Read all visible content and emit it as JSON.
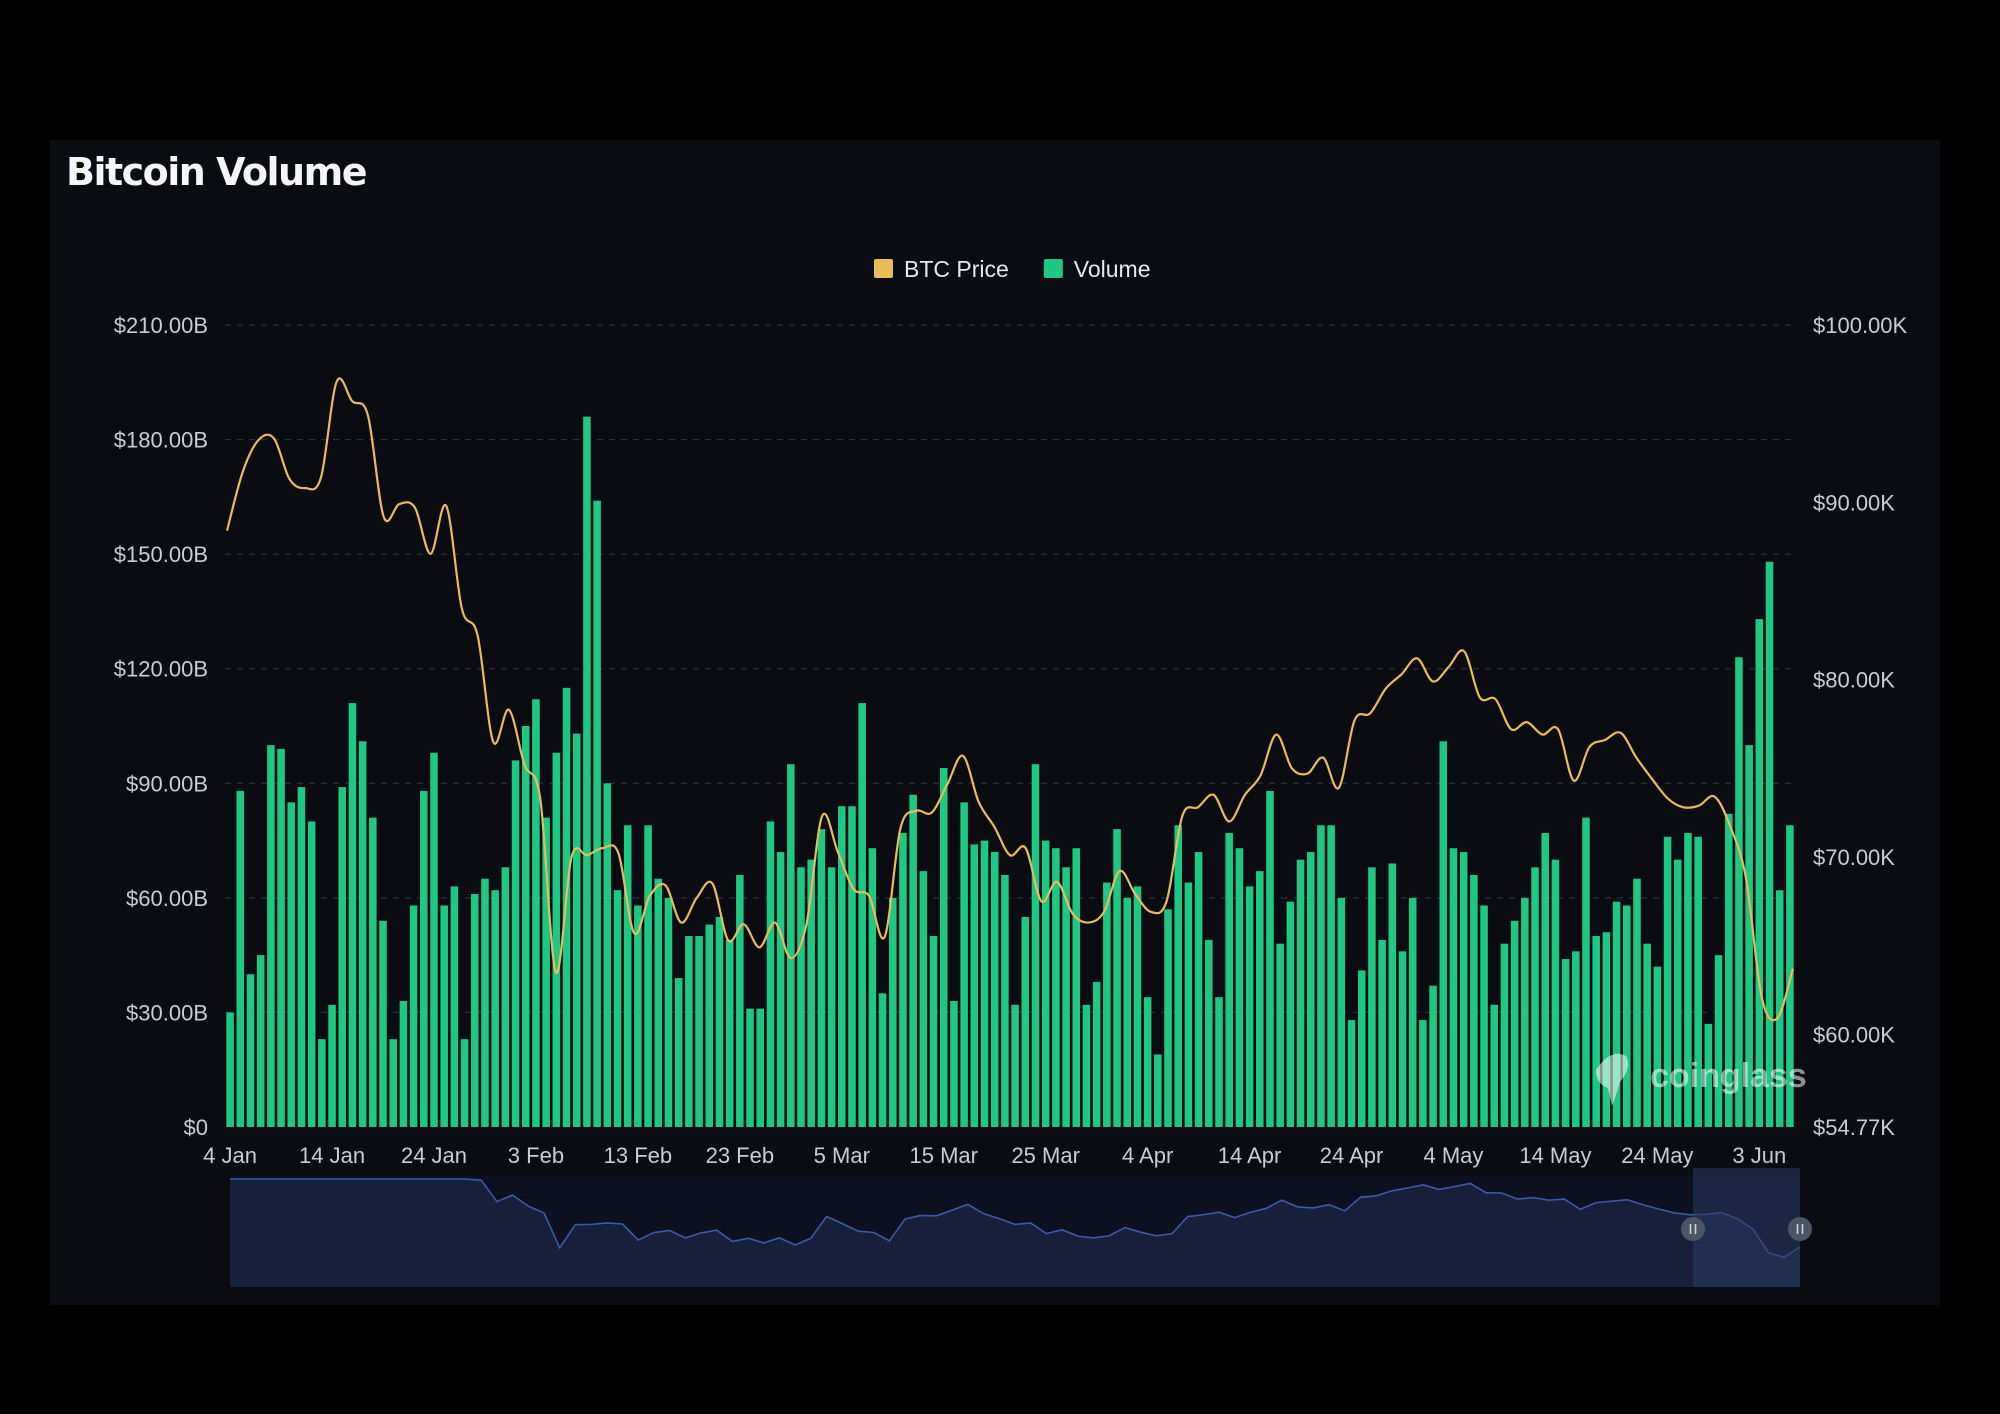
{
  "title": "Bitcoin Volume",
  "watermark": "coinglass",
  "colors": {
    "background": "#000000",
    "panel": "#0a0c12",
    "volume": "#1ec882",
    "price": "#e8bc5a",
    "grid": "#2a2f3a",
    "axis_text": "#c8ccd4",
    "navigator": "#3d5aa8"
  },
  "chart_data": {
    "type": "bar",
    "title": "Bitcoin Volume",
    "legend": [
      {
        "name": "BTC Price",
        "color": "#e8bc5a"
      },
      {
        "name": "Volume",
        "color": "#1ec882"
      }
    ],
    "legend_position": "top-center",
    "grid": true,
    "x_start": "4 Jan",
    "x_ticks": [
      "4 Jan",
      "14 Jan",
      "24 Jan",
      "3 Feb",
      "13 Feb",
      "23 Feb",
      "5 Mar",
      "15 Mar",
      "25 Mar",
      "4 Apr",
      "14 Apr",
      "24 Apr",
      "4 May",
      "14 May",
      "24 May",
      "3 Jun"
    ],
    "y_left": {
      "ticks": [
        "$0",
        "$30.00B",
        "$60.00B",
        "$90.00B",
        "$120.00B",
        "$150.00B",
        "$180.00B",
        "$210.00B"
      ],
      "range": [
        0,
        210
      ],
      "unit": "billion USD"
    },
    "y_right": {
      "ticks": [
        "$54.77K",
        "$60.00K",
        "$70.00K",
        "$80.00K",
        "$90.00K",
        "$100.00K"
      ],
      "range": [
        54.77,
        100
      ],
      "unit": "thousand USD"
    },
    "series": [
      {
        "name": "Volume",
        "type": "bar",
        "values": [
          30,
          88,
          40,
          45,
          100,
          99,
          85,
          89,
          80,
          23,
          32,
          89,
          111,
          101,
          81,
          54,
          23,
          33,
          58,
          88,
          98,
          58,
          63,
          23,
          61,
          65,
          62,
          68,
          96,
          105,
          112,
          81,
          98,
          115,
          103,
          186,
          164,
          90,
          62,
          79,
          58,
          79,
          65,
          60,
          39,
          50,
          50,
          53,
          55,
          49,
          66,
          31,
          31,
          80,
          72,
          95,
          68,
          70,
          78,
          68,
          84,
          84,
          111,
          73,
          35,
          60,
          77,
          87,
          67,
          50,
          94,
          33,
          85,
          74,
          75,
          72,
          66,
          32,
          55,
          95,
          75,
          73,
          68,
          73,
          32,
          38,
          64,
          78,
          60,
          63,
          34,
          19,
          57,
          79,
          64,
          72,
          49,
          34,
          77,
          73,
          63,
          67,
          88,
          48,
          59,
          70,
          72,
          79,
          79,
          60,
          28,
          41,
          68,
          49,
          69,
          46,
          60,
          28,
          37,
          101,
          73,
          72,
          66,
          58,
          32,
          48,
          54,
          60,
          68,
          77,
          70,
          44,
          46,
          81,
          50,
          51,
          59,
          58,
          65,
          48,
          42,
          76,
          70,
          77,
          76,
          27,
          45,
          82,
          123,
          100,
          133,
          148,
          62,
          79
        ]
      },
      {
        "name": "BTC Price",
        "type": "line",
        "values": [
          88.4,
          91.7,
          93.5,
          93.6,
          91.3,
          90.8,
          91.4,
          96.8,
          95.7,
          94.9,
          89.2,
          89.9,
          89.7,
          87.1,
          89.8,
          84.0,
          82.5,
          76.5,
          78.3,
          75.2,
          73.3,
          63.5,
          70.0,
          70.1,
          70.5,
          70.2,
          65.7,
          67.8,
          68.4,
          66.3,
          67.7,
          68.5,
          65.3,
          66.2,
          64.9,
          66.3,
          64.3,
          66.2,
          72.3,
          70.3,
          68.2,
          67.8,
          65.5,
          71.6,
          72.6,
          72.5,
          74.1,
          75.7,
          73.1,
          71.7,
          70.1,
          70.5,
          67.5,
          68.6,
          66.8,
          66.3,
          66.9,
          69.2,
          67.9,
          66.9,
          67.5,
          72.3,
          72.8,
          73.5,
          72.0,
          73.5,
          74.6,
          76.9,
          75.0,
          74.7,
          75.6,
          73.9,
          77.7,
          78.1,
          79.5,
          80.3,
          81.2,
          79.9,
          80.7,
          81.6,
          79.0,
          78.9,
          77.2,
          77.6,
          76.9,
          77.2,
          74.3,
          76.2,
          76.6,
          77.0,
          75.6,
          74.4,
          73.3,
          72.8,
          72.9,
          73.4,
          71.7,
          68.8,
          62.1,
          60.9,
          63.7
        ]
      }
    ]
  }
}
